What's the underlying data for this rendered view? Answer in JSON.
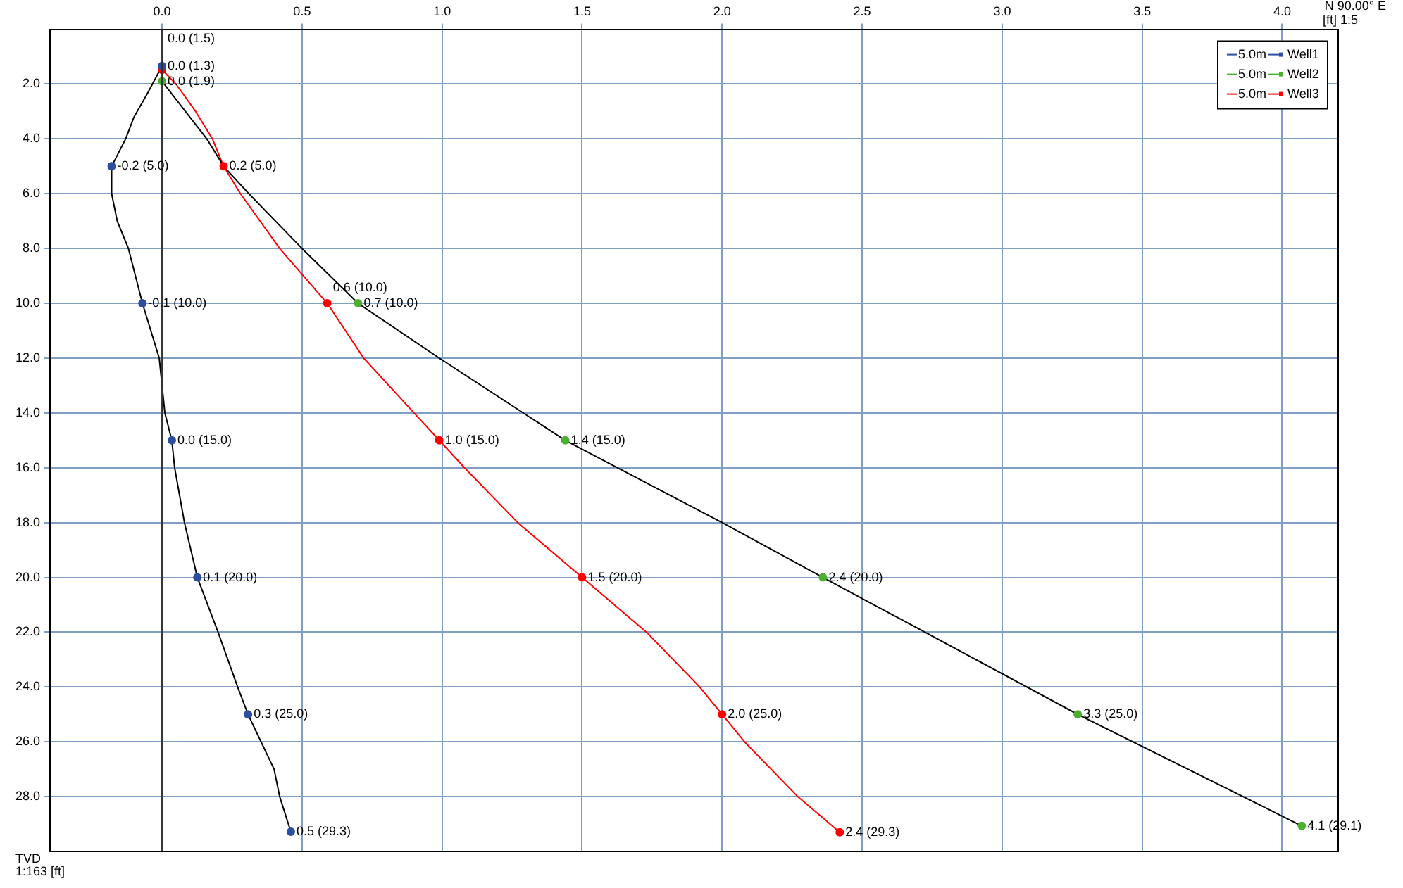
{
  "chart_data": {
    "type": "scatter",
    "xlabel": "N 90.00° E",
    "ylabel": "TVD",
    "annotations": [
      "[ft] 1:5",
      "1:163 [ft]",
      "5.0m"
    ],
    "xlim": [
      -0.4,
      4.2
    ],
    "ylim": [
      30,
      0
    ],
    "xticks": [
      {
        "value": 0,
        "label": "0.0"
      },
      {
        "value": 0.5,
        "label": "0.5"
      },
      {
        "value": 1,
        "label": "1.0"
      },
      {
        "value": 1.5,
        "label": "1.5"
      },
      {
        "value": 2,
        "label": "2.0"
      },
      {
        "value": 2.5,
        "label": "2.5"
      },
      {
        "value": 3,
        "label": "3.0"
      },
      {
        "value": 3.5,
        "label": "3.5"
      },
      {
        "value": 4,
        "label": "4.0"
      }
    ],
    "yticks": [
      {
        "value": 2,
        "label": "2.0"
      },
      {
        "value": 4,
        "label": "4.0"
      },
      {
        "value": 6,
        "label": "6.0"
      },
      {
        "value": 8,
        "label": "8.0"
      },
      {
        "value": 10,
        "label": "10.0"
      },
      {
        "value": 12,
        "label": "12.0"
      },
      {
        "value": 14,
        "label": "14.0"
      },
      {
        "value": 16,
        "label": "16.0"
      },
      {
        "value": 18,
        "label": "18.0"
      },
      {
        "value": 20,
        "label": "20.0"
      },
      {
        "value": 22,
        "label": "22.0"
      },
      {
        "value": 24,
        "label": "24.0"
      },
      {
        "value": 26,
        "label": "26.0"
      },
      {
        "value": 28,
        "label": "28.0"
      }
    ],
    "grid": true,
    "legend": "top right",
    "ref_lines": [
      {
        "axis": "x",
        "value": 0,
        "color": "#333333"
      }
    ],
    "series": [
      {
        "type": "line",
        "marker": "none",
        "color": "#000000",
        "x": [
          0,
          -0.05,
          -0.1,
          -0.13,
          -0.18,
          -0.18,
          -0.16,
          -0.12,
          -0.07,
          -0.01,
          0,
          0.01,
          0.035,
          0.045,
          0.08,
          0.126,
          0.2,
          0.27,
          0.307,
          0.4,
          0.42,
          0.46
        ],
        "values": [
          1.34,
          2.3,
          3.2,
          4,
          5,
          6,
          7,
          8,
          10,
          12,
          13,
          14,
          15,
          16,
          18,
          20,
          22,
          24,
          25,
          27,
          28,
          29.28
        ]
      },
      {
        "type": "line",
        "marker": "none",
        "color": "#000000",
        "x": [
          0,
          0.16,
          0.22,
          0.31,
          0.5,
          0.7,
          0.99,
          1.44,
          2,
          2.36,
          3.27,
          4.07
        ],
        "values": [
          1.9,
          4,
          5,
          6,
          8,
          10,
          12,
          15,
          18,
          20,
          25,
          29.07
        ]
      },
      {
        "type": "line",
        "marker": "none",
        "color": "#ff0000",
        "x": [
          0,
          0.05,
          0.12,
          0.18,
          0.22,
          0.28,
          0.42,
          0.59,
          0.72,
          0.9,
          0.99,
          1.08,
          1.27,
          1.5,
          1.73,
          1.92,
          2,
          2.08,
          2.27,
          2.42
        ],
        "values": [
          1.48,
          2,
          3,
          4,
          5,
          6,
          8,
          10,
          12,
          14,
          15,
          16,
          18,
          20,
          22,
          24,
          25,
          26,
          28,
          29.3
        ]
      },
      {
        "marker": "circle",
        "name": "Well1",
        "color": "#2b4ea0",
        "x": [
          0,
          -0.18,
          -0.07,
          0.035,
          0.126,
          0.307,
          0.46
        ],
        "values": [
          1.34,
          5,
          10,
          15,
          20,
          25,
          29.28
        ],
        "value_labels": [
          "0.0 (1.3)",
          "-0.2 (5.0)",
          "-0.1 (10.0)",
          "0.0 (15.0)",
          "0.1 (20.0)",
          "0.3 (25.0)",
          "0.5 (29.3)"
        ]
      },
      {
        "marker": "circle",
        "name": "Well2",
        "color": "#4caf30",
        "x": [
          0,
          0.7,
          1.44,
          2.36,
          3.27,
          4.07
        ],
        "values": [
          1.9,
          10,
          15,
          20,
          25,
          29.07
        ],
        "value_labels": [
          "0.0 (1.9)",
          "0.7 (10.0)",
          "1.4 (15.0)",
          "2.4 (20.0)",
          "3.3 (25.0)",
          "4.1 (29.1)"
        ]
      },
      {
        "marker": "circle",
        "name": "Well3",
        "color": "#ff0000",
        "x": [
          0,
          0.22,
          0.59,
          0.99,
          1.5,
          2,
          2.42
        ],
        "values": [
          1.48,
          5,
          10,
          15,
          20,
          25,
          29.3
        ],
        "value_labels": [
          "0.0 (1.5)",
          "0.2 (5.0)",
          "0.6 (10.0)",
          "1.0 (15.0)",
          "1.5 (20.0)",
          "2.0 (25.0)",
          "2.4 (29.3)"
        ]
      }
    ]
  }
}
